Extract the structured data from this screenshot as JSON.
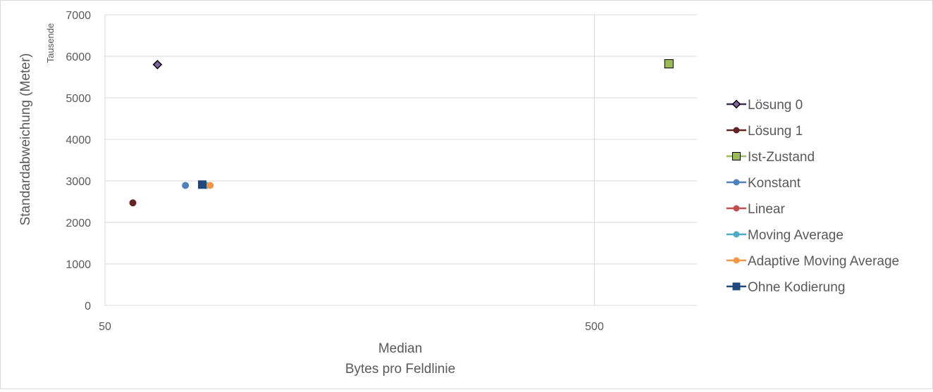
{
  "chart_data": {
    "type": "scatter",
    "title": "",
    "xlabel": "Median",
    "xlabel_sub": "Bytes pro Feldlinie",
    "ylabel": "Standardabweichung (Meter)",
    "y_unit_label": "Tausende",
    "x_scale": "log",
    "xlim": [
      50,
      810
    ],
    "ylim": [
      0,
      7000
    ],
    "x_ticks": [
      50,
      500
    ],
    "x_tick_labels": [
      "50",
      "500"
    ],
    "y_ticks": [
      0,
      1000,
      2000,
      3000,
      4000,
      5000,
      6000,
      7000
    ],
    "y_tick_labels": [
      "0",
      "1000",
      "2000",
      "3000",
      "4000",
      "5000",
      "6000",
      "7000"
    ],
    "grid": true,
    "legend_position": "right",
    "series": [
      {
        "name": "Lösung 0",
        "marker": "diamond",
        "color": "#403152",
        "x": [
          64
        ],
        "y": [
          5800
        ]
      },
      {
        "name": "Lösung 1",
        "marker": "circle",
        "color": "#632523",
        "x": [
          57
        ],
        "y": [
          2470
        ]
      },
      {
        "name": "Ist-Zustand",
        "marker": "square",
        "color": "#9bbb59",
        "x": [
          710
        ],
        "y": [
          5820
        ]
      },
      {
        "name": "Konstant",
        "marker": "circle",
        "color": "#4f81bd",
        "x": [
          73
        ],
        "y": [
          2890
        ]
      },
      {
        "name": "Linear",
        "marker": "circle",
        "color": "#c0504d",
        "x": [
          80.5
        ],
        "y": [
          2890
        ]
      },
      {
        "name": "Moving Average",
        "marker": "circle",
        "color": "#4bacc6",
        "x": [
          80.5
        ],
        "y": [
          2890
        ]
      },
      {
        "name": "Adaptive Moving Average",
        "marker": "circle",
        "color": "#f79646",
        "x": [
          82
        ],
        "y": [
          2890
        ]
      },
      {
        "name": "Ohne Kodierung",
        "marker": "square",
        "color": "#1f497d",
        "x": [
          79
        ],
        "y": [
          2910
        ]
      }
    ]
  }
}
